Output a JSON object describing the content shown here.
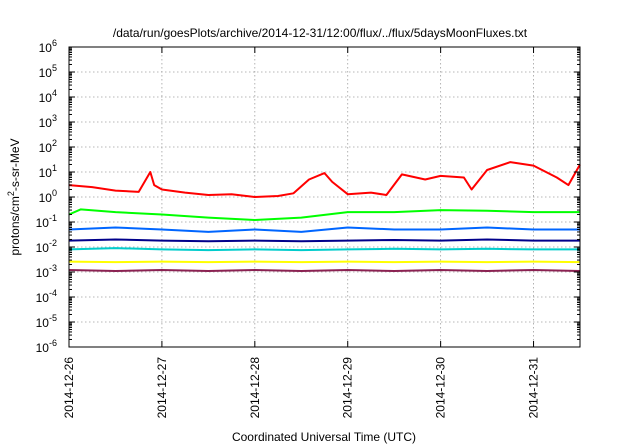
{
  "chart_data": {
    "type": "line",
    "title": "/data/run/goesPlots/archive/2014-12-31/12:00/flux/../flux/5daysMoonFluxes.txt",
    "xlabel": "Coordinated Universal Time (UTC)",
    "ylabel_base": "protons/cm",
    "ylabel_sup": "2",
    "ylabel_rest": "-s-sr-MeV",
    "yscale": "log",
    "ylim": [
      1e-06,
      1000000.0
    ],
    "xlim": [
      "2014-12-26",
      "2014-12-31 12:00"
    ],
    "x_tick_labels": [
      "2014-12-26",
      "2014-12-27",
      "2014-12-28",
      "2014-12-29",
      "2014-12-30",
      "2014-12-31"
    ],
    "y_tick_labels": [
      {
        "base": "10",
        "exp": "-6"
      },
      {
        "base": "10",
        "exp": "-5"
      },
      {
        "base": "10",
        "exp": "-4"
      },
      {
        "base": "10",
        "exp": "-3"
      },
      {
        "base": "10",
        "exp": "-2"
      },
      {
        "base": "10",
        "exp": "-1"
      },
      {
        "base": "10",
        "exp": "0"
      },
      {
        "base": "10",
        "exp": "1"
      },
      {
        "base": "10",
        "exp": "2"
      },
      {
        "base": "10",
        "exp": "3"
      },
      {
        "base": "10",
        "exp": "4"
      },
      {
        "base": "10",
        "exp": "5"
      },
      {
        "base": "10",
        "exp": "6"
      }
    ],
    "grid": true,
    "series": [
      {
        "color": "#ff0000",
        "x": [
          "2014-12-26 00:00",
          "2014-12-26 06:00",
          "2014-12-26 12:00",
          "2014-12-26 18:00",
          "2014-12-26 21:00",
          "2014-12-26 22:00",
          "2014-12-27 00:00",
          "2014-12-27 06:00",
          "2014-12-27 12:00",
          "2014-12-27 18:00",
          "2014-12-28 00:00",
          "2014-12-28 06:00",
          "2014-12-28 10:00",
          "2014-12-28 14:00",
          "2014-12-28 18:00",
          "2014-12-28 20:00",
          "2014-12-29 00:00",
          "2014-12-29 06:00",
          "2014-12-29 10:00",
          "2014-12-29 14:00",
          "2014-12-29 20:00",
          "2014-12-30 00:00",
          "2014-12-30 06:00",
          "2014-12-30 08:00",
          "2014-12-30 12:00",
          "2014-12-30 18:00",
          "2014-12-31 00:00",
          "2014-12-31 06:00",
          "2014-12-31 09:00",
          "2014-12-31 12:00"
        ],
        "y": [
          3,
          2.5,
          1.8,
          1.6,
          10,
          3,
          2,
          1.5,
          1.2,
          1.3,
          1.0,
          1.1,
          1.4,
          5,
          9,
          4,
          1.3,
          1.5,
          1.2,
          8,
          5,
          7,
          6,
          2,
          12,
          25,
          18,
          6,
          3,
          20
        ]
      },
      {
        "color": "#00ff00",
        "x": [
          "2014-12-26 00:00",
          "2014-12-26 03:00",
          "2014-12-26 12:00",
          "2014-12-27 00:00",
          "2014-12-27 12:00",
          "2014-12-28 00:00",
          "2014-12-28 12:00",
          "2014-12-29 00:00",
          "2014-12-29 12:00",
          "2014-12-30 00:00",
          "2014-12-30 12:00",
          "2014-12-31 00:00",
          "2014-12-31 12:00"
        ],
        "y": [
          0.2,
          0.32,
          0.25,
          0.2,
          0.15,
          0.12,
          0.15,
          0.25,
          0.25,
          0.3,
          0.28,
          0.25,
          0.25
        ]
      },
      {
        "color": "#0066ff",
        "x": [
          "2014-12-26 00:00",
          "2014-12-26 12:00",
          "2014-12-27 00:00",
          "2014-12-27 12:00",
          "2014-12-28 00:00",
          "2014-12-28 12:00",
          "2014-12-29 00:00",
          "2014-12-29 12:00",
          "2014-12-30 00:00",
          "2014-12-30 12:00",
          "2014-12-31 00:00",
          "2014-12-31 12:00"
        ],
        "y": [
          0.05,
          0.06,
          0.05,
          0.04,
          0.05,
          0.04,
          0.06,
          0.05,
          0.05,
          0.06,
          0.05,
          0.05
        ]
      },
      {
        "color": "#00008b",
        "x": [
          "2014-12-26 00:00",
          "2014-12-26 12:00",
          "2014-12-27 00:00",
          "2014-12-27 12:00",
          "2014-12-28 00:00",
          "2014-12-28 12:00",
          "2014-12-29 00:00",
          "2014-12-29 12:00",
          "2014-12-30 00:00",
          "2014-12-30 12:00",
          "2014-12-31 00:00",
          "2014-12-31 12:00"
        ],
        "y": [
          0.018,
          0.02,
          0.018,
          0.017,
          0.018,
          0.017,
          0.018,
          0.019,
          0.018,
          0.02,
          0.018,
          0.018
        ]
      },
      {
        "color": "#00cccc",
        "x": [
          "2014-12-26 00:00",
          "2014-12-26 12:00",
          "2014-12-27 00:00",
          "2014-12-27 12:00",
          "2014-12-28 00:00",
          "2014-12-28 12:00",
          "2014-12-29 00:00",
          "2014-12-29 12:00",
          "2014-12-30 00:00",
          "2014-12-30 12:00",
          "2014-12-31 00:00",
          "2014-12-31 12:00"
        ],
        "y": [
          0.008,
          0.009,
          0.008,
          0.0075,
          0.008,
          0.0075,
          0.008,
          0.0085,
          0.008,
          0.0085,
          0.008,
          0.008
        ]
      },
      {
        "color": "#ffff00",
        "x": [
          "2014-12-26 00:00",
          "2014-12-26 12:00",
          "2014-12-27 00:00",
          "2014-12-27 12:00",
          "2014-12-28 00:00",
          "2014-12-28 12:00",
          "2014-12-29 00:00",
          "2014-12-29 12:00",
          "2014-12-30 00:00",
          "2014-12-30 12:00",
          "2014-12-31 00:00",
          "2014-12-31 12:00"
        ],
        "y": [
          0.0026,
          0.0025,
          0.0026,
          0.0025,
          0.0026,
          0.0025,
          0.0026,
          0.0025,
          0.0026,
          0.0025,
          0.0026,
          0.0025
        ]
      },
      {
        "color": "#8b2252",
        "x": [
          "2014-12-26 00:00",
          "2014-12-26 12:00",
          "2014-12-27 00:00",
          "2014-12-27 12:00",
          "2014-12-28 00:00",
          "2014-12-28 12:00",
          "2014-12-29 00:00",
          "2014-12-29 12:00",
          "2014-12-30 00:00",
          "2014-12-30 12:00",
          "2014-12-31 00:00",
          "2014-12-31 12:00"
        ],
        "y": [
          0.0012,
          0.0011,
          0.0012,
          0.0011,
          0.0012,
          0.0011,
          0.0012,
          0.0011,
          0.0012,
          0.0011,
          0.0012,
          0.0011
        ]
      }
    ]
  }
}
